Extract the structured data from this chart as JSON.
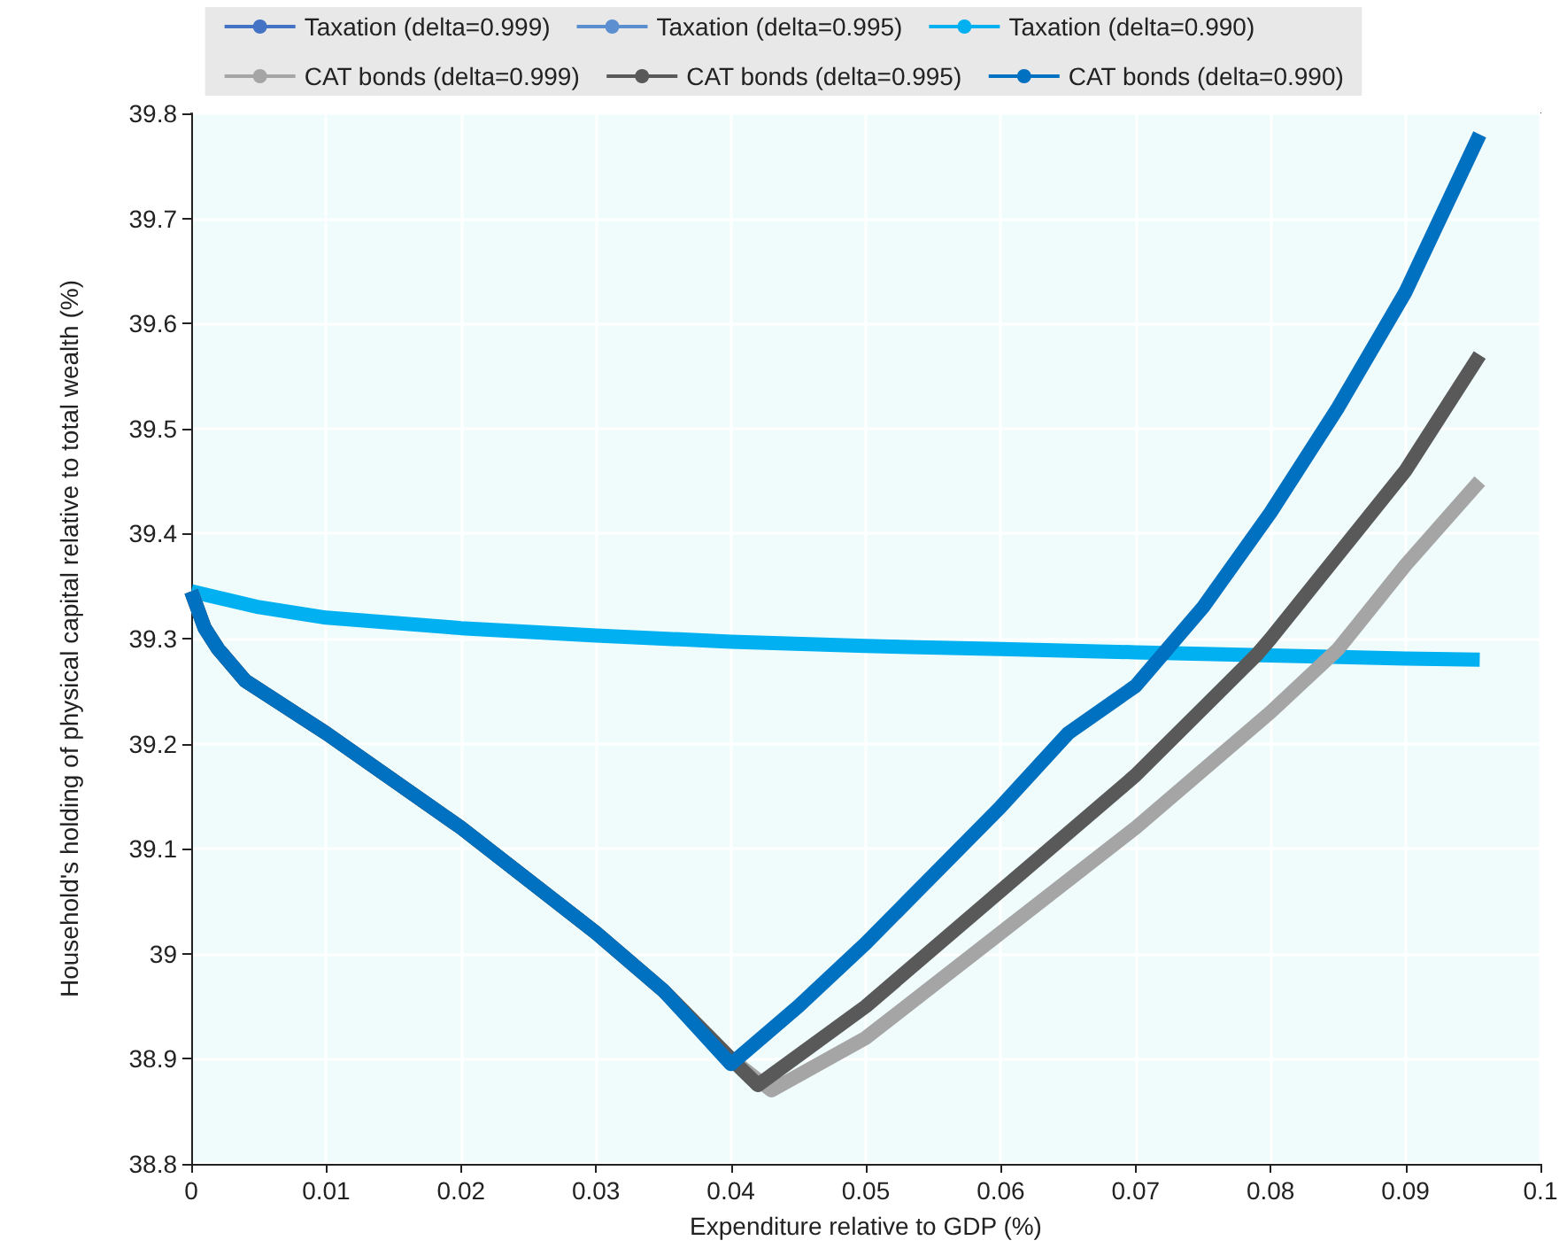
{
  "chart_data": {
    "type": "line",
    "xlabel": "Expenditure relative to GDP (%)",
    "ylabel": "Household's holding of physical capital relative to total wealth (%)",
    "xlim": [
      0,
      0.1
    ],
    "xticks": [
      0,
      0.01,
      0.02,
      0.03,
      0.04,
      0.05,
      0.06,
      0.07,
      0.08,
      0.09,
      0.1
    ],
    "ylim": [
      38.8,
      39.8
    ],
    "yticks": [
      38.8,
      38.9,
      39,
      39.1,
      39.2,
      39.3,
      39.4,
      39.5,
      39.6,
      39.7,
      39.8
    ],
    "grid": true,
    "legend": "top",
    "line_style": "solid",
    "series": [
      {
        "name": "Taxation (delta=0.999)",
        "color": "#4472c4"
      },
      {
        "name": "Taxation (delta=0.995)",
        "color": "#5b8fd0"
      },
      {
        "name": "Taxation (delta=0.990)",
        "color": "#00b0f0",
        "x": [
          0,
          0.005,
          0.01,
          0.02,
          0.03,
          0.04,
          0.05,
          0.06,
          0.07,
          0.08,
          0.09,
          0.0955
        ],
        "values": [
          39.345,
          39.33,
          39.32,
          39.31,
          39.303,
          39.297,
          39.293,
          39.29,
          39.287,
          39.284,
          39.281,
          39.28
        ]
      },
      {
        "name": "CAT bonds (delta=0.999)",
        "color": "#a5a5a5",
        "x": [
          0,
          0.001,
          0.002,
          0.004,
          0.01,
          0.02,
          0.03,
          0.035,
          0.04,
          0.043,
          0.05,
          0.06,
          0.07,
          0.08,
          0.085,
          0.09,
          0.0955
        ],
        "values": [
          39.345,
          39.31,
          39.29,
          39.26,
          39.21,
          39.12,
          39.02,
          38.965,
          38.9,
          38.87,
          38.92,
          39.02,
          39.12,
          39.23,
          39.29,
          39.37,
          39.45
        ]
      },
      {
        "name": "CAT bonds (delta=0.995)",
        "color": "#595959",
        "x": [
          0,
          0.001,
          0.002,
          0.004,
          0.01,
          0.02,
          0.03,
          0.035,
          0.04,
          0.042,
          0.05,
          0.06,
          0.07,
          0.079,
          0.08,
          0.09,
          0.0955
        ],
        "values": [
          39.345,
          39.31,
          39.29,
          39.26,
          39.21,
          39.12,
          39.02,
          38.965,
          38.9,
          38.875,
          38.95,
          39.06,
          39.17,
          39.285,
          39.3,
          39.46,
          39.57
        ]
      },
      {
        "name": "CAT bonds (delta=0.990)",
        "color": "#0070c0",
        "x": [
          0,
          0.001,
          0.002,
          0.004,
          0.01,
          0.02,
          0.03,
          0.035,
          0.04,
          0.045,
          0.05,
          0.055,
          0.06,
          0.065,
          0.07,
          0.075,
          0.08,
          0.085,
          0.09,
          0.0955
        ],
        "values": [
          39.345,
          39.31,
          39.29,
          39.26,
          39.21,
          39.12,
          39.02,
          38.965,
          38.895,
          38.95,
          39.01,
          39.075,
          39.14,
          39.21,
          39.255,
          39.33,
          39.42,
          39.52,
          39.63,
          39.78
        ]
      }
    ]
  }
}
